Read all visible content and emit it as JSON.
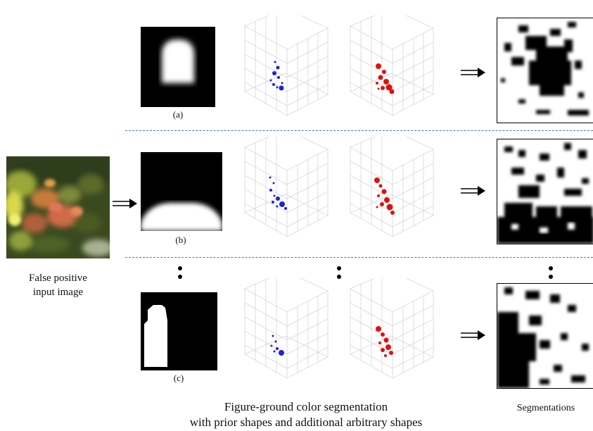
{
  "input": {
    "caption_line1": "False positive",
    "caption_line2": "input image"
  },
  "rows": [
    {
      "label": "(a)"
    },
    {
      "label": "(b)"
    },
    {
      "label": "(c)"
    }
  ],
  "bottom": {
    "caption_line1": "Figure-ground color segmentation",
    "caption_line2": "with prior shapes and additional arbitrary shapes",
    "segmentations_label": "Segmentations"
  },
  "colors": {
    "dashed_divider": "#3b7fc6",
    "figure_points": "#1f1fe0",
    "ground_points": "#e01010"
  }
}
